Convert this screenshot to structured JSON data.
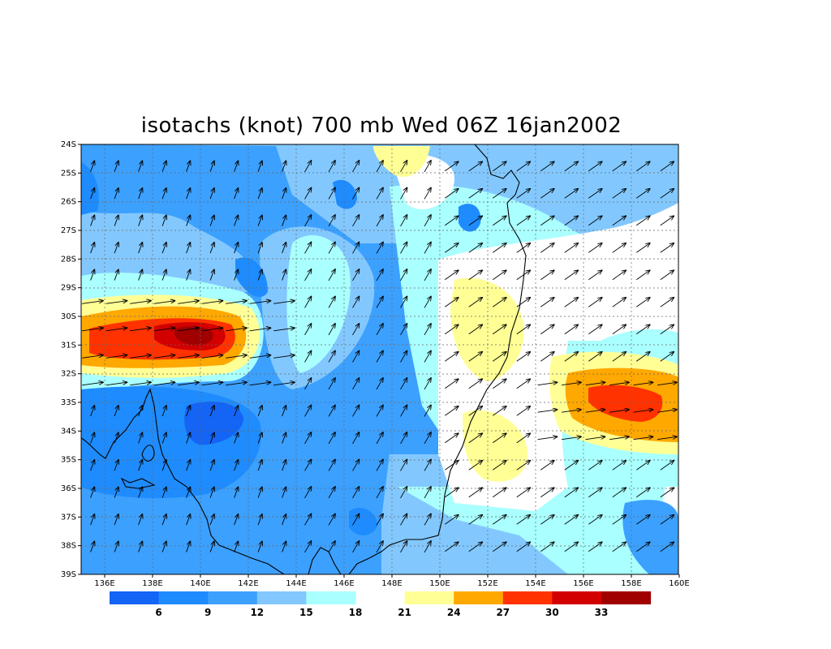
{
  "title": "isotachs (knot) 700 mb Wed 06Z 16jan2002",
  "lat_labels": [
    "24S",
    "25S",
    "26S",
    "27S",
    "28S",
    "29S",
    "30S",
    "31S",
    "32S",
    "33S",
    "34S",
    "35S",
    "36S",
    "37S",
    "38S",
    "39S"
  ],
  "lon_labels": [
    "136E",
    "138E",
    "140E",
    "142E",
    "144E",
    "146E",
    "148E",
    "150E",
    "152E",
    "154E",
    "156E",
    "158E",
    "160E"
  ],
  "colorbar": {
    "levels": [
      "6",
      "9",
      "12",
      "15",
      "18",
      "21",
      "24",
      "27",
      "30",
      "33"
    ],
    "colors": [
      "#1464f5",
      "#1e8cff",
      "#3ca0ff",
      "#82c8ff",
      "#aaffff",
      "#ffffff",
      "#ffff96",
      "#ffa800",
      "#ff3200",
      "#d20000",
      "#a00000"
    ]
  },
  "map_data": {
    "lon_range": [
      135,
      160
    ],
    "lat_range": [
      -39,
      -24
    ],
    "units": "knot",
    "level": "700 mb",
    "speed_maxima": [
      {
        "lon": 140,
        "lat": -31,
        "value": 33
      },
      {
        "lon": 158,
        "lat": -33,
        "value": 30
      }
    ]
  }
}
